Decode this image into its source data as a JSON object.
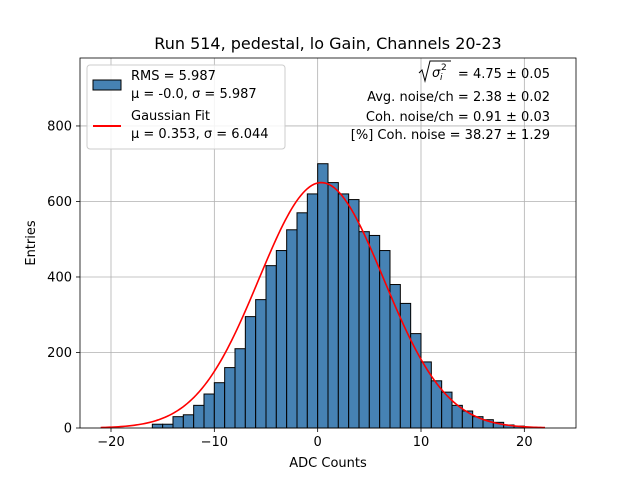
{
  "chart_data": {
    "type": "bar",
    "title": "Run 514, pedestal, lo Gain, Channels 20-23",
    "xlabel": "ADC Counts",
    "ylabel": "Entries",
    "xlim": [
      -23,
      25
    ],
    "ylim": [
      0,
      980
    ],
    "xticks": [
      "−20",
      "−10",
      "0",
      "10",
      "20"
    ],
    "xtick_values": [
      -20,
      -10,
      0,
      10,
      20
    ],
    "yticks": [
      "0",
      "200",
      "400",
      "600",
      "800"
    ],
    "ytick_values": [
      0,
      200,
      400,
      600,
      800
    ],
    "grid": true,
    "bin_edges_start": -20,
    "bin_width": 1,
    "counts": [
      0,
      0,
      0,
      0,
      10,
      10,
      30,
      35,
      60,
      90,
      120,
      160,
      210,
      295,
      340,
      430,
      470,
      525,
      570,
      620,
      700,
      650,
      620,
      605,
      520,
      510,
      470,
      380,
      330,
      250,
      175,
      125,
      95,
      60,
      45,
      30,
      22,
      15,
      8,
      5,
      0
    ],
    "bar_color": "#4682b4",
    "fit": {
      "name": "Gaussian Fit",
      "mu": 0.353,
      "sigma": 6.044,
      "amplitude": 650,
      "x_range": [
        -21,
        22
      ],
      "color": "#ff0000"
    },
    "legend": {
      "position": "top-left",
      "entries": [
        {
          "kind": "patch",
          "line1": "RMS = 5.987",
          "line2": "μ = -0.0, σ = 5.987"
        },
        {
          "kind": "line",
          "line1": "Gaussian Fit",
          "line2": "μ = 0.353, σ = 6.044"
        }
      ]
    },
    "annotations": {
      "sigma_value": "= 4.75 ± 0.05",
      "avg_noise": "Avg. noise/ch = 2.38 ± 0.02",
      "coh_noise": "Coh. noise/ch = 0.91 ± 0.03",
      "coh_pct": "[%] Coh. noise = 38.27 ± 1.29"
    }
  }
}
